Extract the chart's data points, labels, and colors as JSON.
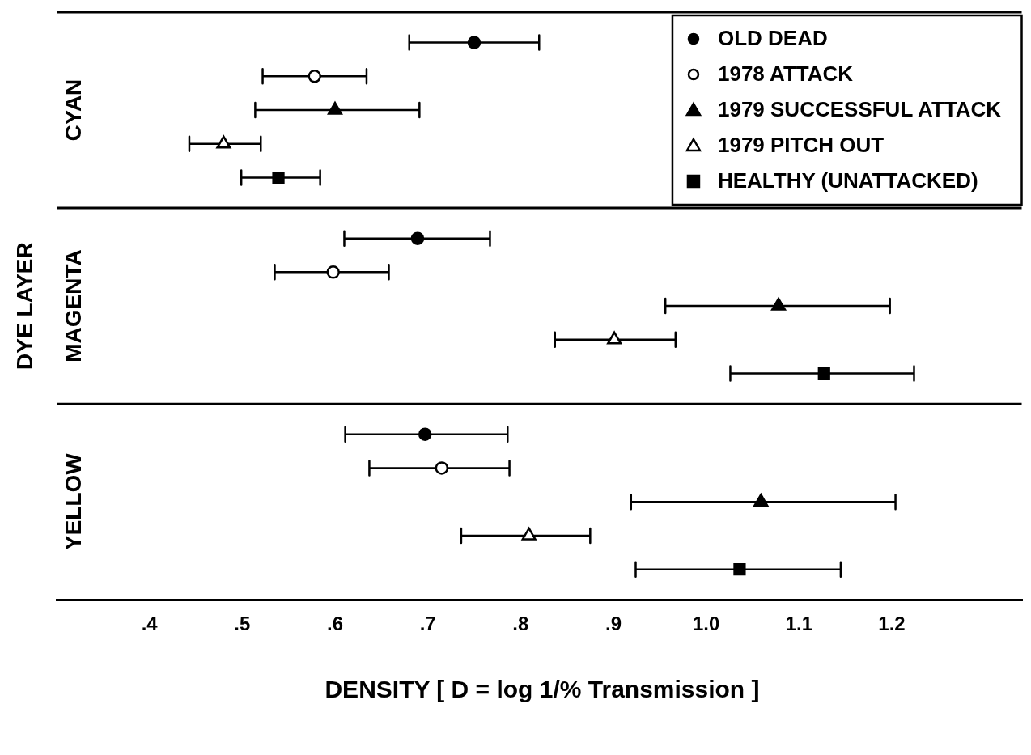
{
  "chart_data": {
    "type": "scatter",
    "orientation": "horizontal",
    "xlabel": "DENSITY [ D = log 1/% Transmission ]",
    "ylabel": "DYE LAYER",
    "categories": [
      "CYAN",
      "MAGENTA",
      "YELLOW"
    ],
    "xlim": [
      0.3,
      1.34
    ],
    "xticks": [
      {
        "value": 0.4,
        "label": ".4"
      },
      {
        "value": 0.5,
        "label": ".5"
      },
      {
        "value": 0.6,
        "label": ".6"
      },
      {
        "value": 0.7,
        "label": ".7"
      },
      {
        "value": 0.8,
        "label": ".8"
      },
      {
        "value": 0.9,
        "label": ".9"
      },
      {
        "value": 1.0,
        "label": "1.0"
      },
      {
        "value": 1.1,
        "label": "1.1"
      },
      {
        "value": 1.2,
        "label": "1.2"
      }
    ],
    "legend": "top right",
    "series": [
      {
        "name": "OLD DEAD",
        "color": "#000000",
        "marker": "circle",
        "values": [
          0.75,
          0.689,
          0.697
        ],
        "errors": [
          [
            0.68,
            0.82
          ],
          [
            0.61,
            0.767
          ],
          [
            0.611,
            0.786
          ]
        ]
      },
      {
        "name": "1978 ATTACK",
        "color": "#ffffff",
        "marker": "circle",
        "values": [
          0.578,
          0.598,
          0.715
        ],
        "errors": [
          [
            0.522,
            0.634
          ],
          [
            0.535,
            0.658
          ],
          [
            0.637,
            0.788
          ]
        ]
      },
      {
        "name": "1979 SUCCESSFUL ATTACK",
        "color": "#000000",
        "marker": "triangle",
        "values": [
          0.6,
          1.078,
          1.059
        ],
        "errors": [
          [
            0.514,
            0.691
          ],
          [
            0.956,
            1.198
          ],
          [
            0.919,
            1.204
          ]
        ]
      },
      {
        "name": "1979 PITCH OUT",
        "color": "#ffffff",
        "marker": "triangle",
        "values": [
          0.48,
          0.901,
          0.809
        ],
        "errors": [
          [
            0.443,
            0.52
          ],
          [
            0.837,
            0.967
          ],
          [
            0.736,
            0.875
          ]
        ]
      },
      {
        "name": "HEALTHY (UNATTACKED)",
        "color": "#000000",
        "marker": "square",
        "values": [
          0.539,
          1.127,
          1.036
        ],
        "errors": [
          [
            0.499,
            0.584
          ],
          [
            1.026,
            1.224
          ],
          [
            0.924,
            1.145
          ]
        ]
      }
    ]
  }
}
